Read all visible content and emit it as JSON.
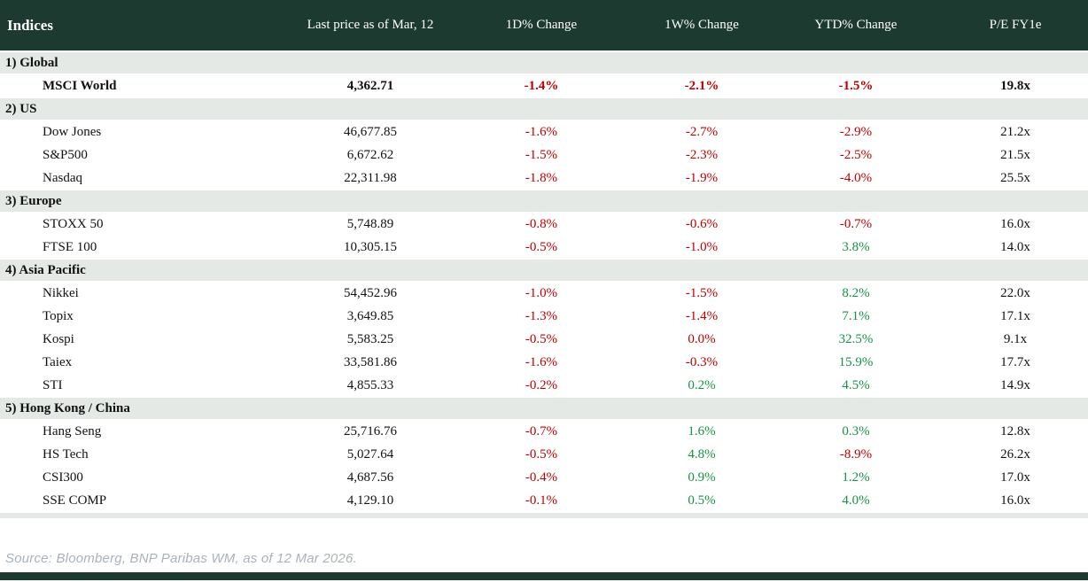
{
  "colors": {
    "header-bg": "#1d3a31",
    "section-bg": "#e4e9e5",
    "negative": "#c00000",
    "positive": "#169247",
    "source-text": "#a9b2bb"
  },
  "chart_data": {
    "type": "table",
    "title": "Indices",
    "columns": [
      "Indices",
      "Last price as of Mar, 12",
      "1D% Change",
      "1W% Change",
      "YTD% Change",
      "P/E FY1e"
    ],
    "value_color_rule": "negative or zero % changes shown red, positive % changes shown green",
    "sections": [
      {
        "label": "1) Global",
        "rows": [
          {
            "name": "MSCI World",
            "price": "4,362.71",
            "d1": "-1.4%",
            "w1": "-2.1%",
            "ytd": "-1.5%",
            "pe": "19.8x",
            "bold": true
          }
        ]
      },
      {
        "label": "2) US",
        "rows": [
          {
            "name": "Dow Jones",
            "price": "46,677.85",
            "d1": "-1.6%",
            "w1": "-2.7%",
            "ytd": "-2.9%",
            "pe": "21.2x"
          },
          {
            "name": "S&P500",
            "price": "6,672.62",
            "d1": "-1.5%",
            "w1": "-2.3%",
            "ytd": "-2.5%",
            "pe": "21.5x"
          },
          {
            "name": "Nasdaq",
            "price": "22,311.98",
            "d1": "-1.8%",
            "w1": "-1.9%",
            "ytd": "-4.0%",
            "pe": "25.5x"
          }
        ]
      },
      {
        "label": "3) Europe",
        "rows": [
          {
            "name": "STOXX 50",
            "price": "5,748.89",
            "d1": "-0.8%",
            "w1": "-0.6%",
            "ytd": "-0.7%",
            "pe": "16.0x"
          },
          {
            "name": "FTSE 100",
            "price": "10,305.15",
            "d1": "-0.5%",
            "w1": "-1.0%",
            "ytd": "3.8%",
            "pe": "14.0x"
          }
        ]
      },
      {
        "label": "4) Asia Pacific",
        "rows": [
          {
            "name": "Nikkei",
            "price": "54,452.96",
            "d1": "-1.0%",
            "w1": "-1.5%",
            "ytd": "8.2%",
            "pe": "22.0x"
          },
          {
            "name": "Topix",
            "price": "3,649.85",
            "d1": "-1.3%",
            "w1": "-1.4%",
            "ytd": "7.1%",
            "pe": "17.1x"
          },
          {
            "name": "Kospi",
            "price": "5,583.25",
            "d1": "-0.5%",
            "w1": "0.0%",
            "ytd": "32.5%",
            "pe": "9.1x"
          },
          {
            "name": "Taiex",
            "price": "33,581.86",
            "d1": "-1.6%",
            "w1": "-0.3%",
            "ytd": "15.9%",
            "pe": "17.7x"
          },
          {
            "name": "STI",
            "price": "4,855.33",
            "d1": "-0.2%",
            "w1": "0.2%",
            "ytd": "4.5%",
            "pe": "14.9x"
          }
        ]
      },
      {
        "label": "5) Hong Kong / China",
        "rows": [
          {
            "name": "Hang Seng",
            "price": "25,716.76",
            "d1": "-0.7%",
            "w1": "1.6%",
            "ytd": "0.3%",
            "pe": "12.8x"
          },
          {
            "name": "HS Tech",
            "price": "5,027.64",
            "d1": "-0.5%",
            "w1": "4.8%",
            "ytd": "-8.9%",
            "pe": "26.2x"
          },
          {
            "name": "CSI300",
            "price": "4,687.56",
            "d1": "-0.4%",
            "w1": "0.9%",
            "ytd": "1.2%",
            "pe": "17.0x"
          },
          {
            "name": "SSE COMP",
            "price": "4,129.10",
            "d1": "-0.1%",
            "w1": "0.5%",
            "ytd": "4.0%",
            "pe": "16.0x"
          }
        ]
      }
    ]
  },
  "footer": {
    "source": "Source: Bloomberg, BNP Paribas WM, as of 12 Mar 2026."
  }
}
